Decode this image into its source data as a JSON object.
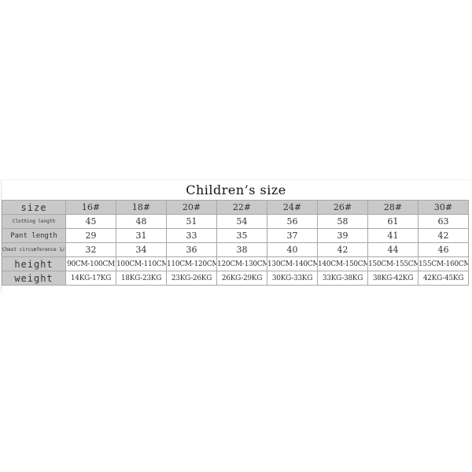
{
  "title": "Children’s size",
  "header": {
    "label": "size",
    "sizes": [
      "16#",
      "18#",
      "20#",
      "22#",
      "24#",
      "26#",
      "28#",
      "30#"
    ]
  },
  "rows": [
    {
      "label": "Clothing length",
      "values": [
        "45",
        "48",
        "51",
        "54",
        "56",
        "58",
        "61",
        "63"
      ]
    },
    {
      "label": "Pant length",
      "values": [
        "29",
        "31",
        "33",
        "35",
        "37",
        "39",
        "41",
        "42"
      ]
    },
    {
      "label": "Chest circumference 1/2",
      "values": [
        "32",
        "34",
        "36",
        "38",
        "40",
        "42",
        "44",
        "46"
      ]
    },
    {
      "label": "height",
      "values": [
        "90CM-100CM",
        "100CM-110CM",
        "110CM-120CM",
        "120CM-130CM",
        "130CM-140CM",
        "140CM-150CM",
        "150CM-155CM",
        "155CM-160CM"
      ]
    },
    {
      "label": "weight",
      "values": [
        "14KG-17KG",
        "18KG-23KG",
        "23KG-26KG",
        "26KG-29KG",
        "30KG-33KG",
        "33KG-38KG",
        "38KG-42KG",
        "42KG-45KG"
      ]
    }
  ],
  "colors": {
    "header_bg": "#c9c9c9",
    "border": "#a8a8a8"
  }
}
